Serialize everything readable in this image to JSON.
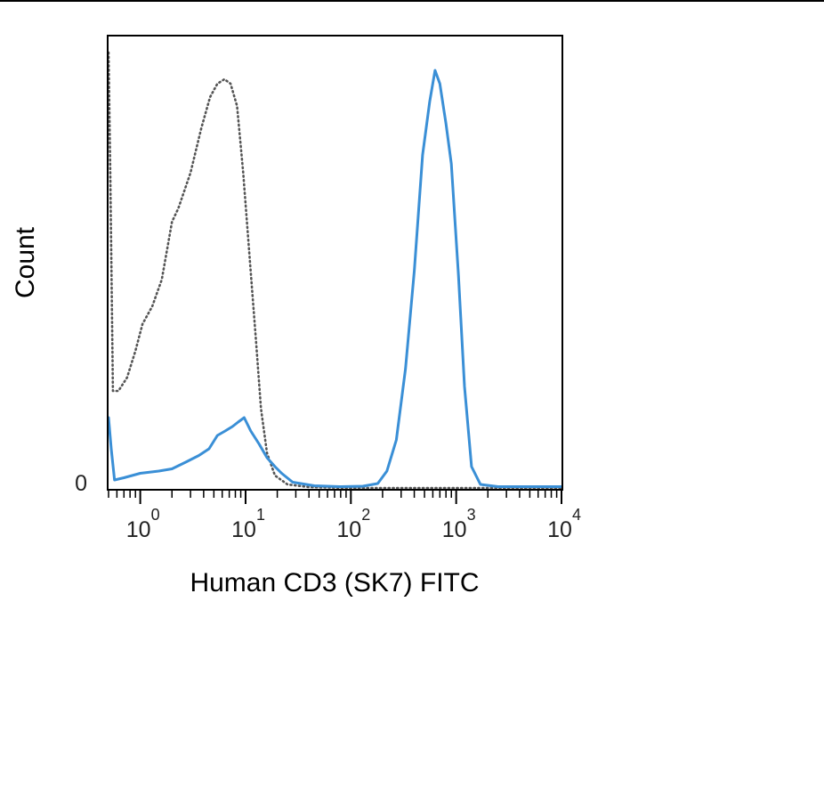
{
  "chart_data": {
    "type": "line",
    "xlabel": "Human CD3 (SK7) FITC",
    "ylabel": "Count",
    "x_scale": "log",
    "xlim": [
      0.5,
      10000
    ],
    "ylim": [
      0,
      1.0
    ],
    "y_tick_labels": [
      {
        "value": 0,
        "label": "0"
      }
    ],
    "x_tick_labels": [
      {
        "value": 1,
        "base": "10",
        "exp": "0"
      },
      {
        "value": 10,
        "base": "10",
        "exp": "1"
      },
      {
        "value": 100,
        "base": "10",
        "exp": "2"
      },
      {
        "value": 1000,
        "base": "10",
        "exp": "3"
      },
      {
        "value": 10000,
        "base": "10",
        "exp": "4"
      }
    ],
    "grid": false,
    "legend": "none",
    "series": [
      {
        "style": "dotted",
        "color": "#555555",
        "points": [
          [
            0.5,
            0.98
          ],
          [
            0.52,
            0.7
          ],
          [
            0.55,
            0.22
          ],
          [
            0.62,
            0.22
          ],
          [
            0.75,
            0.25
          ],
          [
            0.9,
            0.31
          ],
          [
            1.05,
            0.37
          ],
          [
            1.3,
            0.41
          ],
          [
            1.6,
            0.47
          ],
          [
            2.0,
            0.6
          ],
          [
            2.3,
            0.63
          ],
          [
            3.0,
            0.71
          ],
          [
            3.8,
            0.81
          ],
          [
            4.6,
            0.88
          ],
          [
            5.4,
            0.91
          ],
          [
            6.3,
            0.92
          ],
          [
            7.2,
            0.91
          ],
          [
            8.3,
            0.86
          ],
          [
            9.5,
            0.71
          ],
          [
            11,
            0.51
          ],
          [
            12.5,
            0.34
          ],
          [
            14,
            0.18
          ],
          [
            16,
            0.08
          ],
          [
            19,
            0.03
          ],
          [
            25,
            0.01
          ],
          [
            40,
            0.004
          ],
          [
            100,
            0.002
          ],
          [
            1000,
            0.002
          ],
          [
            10000,
            0.002
          ]
        ]
      },
      {
        "style": "solid",
        "color": "#3a8fd6",
        "points": [
          [
            0.5,
            0.16
          ],
          [
            0.53,
            0.09
          ],
          [
            0.57,
            0.02
          ],
          [
            0.7,
            0.025
          ],
          [
            1.0,
            0.035
          ],
          [
            1.5,
            0.04
          ],
          [
            2.0,
            0.045
          ],
          [
            2.7,
            0.06
          ],
          [
            3.6,
            0.075
          ],
          [
            4.5,
            0.09
          ],
          [
            5.4,
            0.12
          ],
          [
            6.4,
            0.13
          ],
          [
            7.5,
            0.14
          ],
          [
            8.5,
            0.15
          ],
          [
            9.7,
            0.16
          ],
          [
            11.2,
            0.13
          ],
          [
            13.5,
            0.1
          ],
          [
            16,
            0.07
          ],
          [
            19,
            0.05
          ],
          [
            22,
            0.035
          ],
          [
            28,
            0.015
          ],
          [
            45,
            0.007
          ],
          [
            80,
            0.005
          ],
          [
            130,
            0.006
          ],
          [
            180,
            0.012
          ],
          [
            220,
            0.04
          ],
          [
            270,
            0.11
          ],
          [
            330,
            0.27
          ],
          [
            400,
            0.49
          ],
          [
            480,
            0.75
          ],
          [
            560,
            0.87
          ],
          [
            630,
            0.94
          ],
          [
            700,
            0.91
          ],
          [
            800,
            0.82
          ],
          [
            900,
            0.73
          ],
          [
            1050,
            0.48
          ],
          [
            1200,
            0.23
          ],
          [
            1400,
            0.05
          ],
          [
            1700,
            0.01
          ],
          [
            2500,
            0.005
          ],
          [
            10000,
            0.005
          ]
        ]
      }
    ]
  }
}
